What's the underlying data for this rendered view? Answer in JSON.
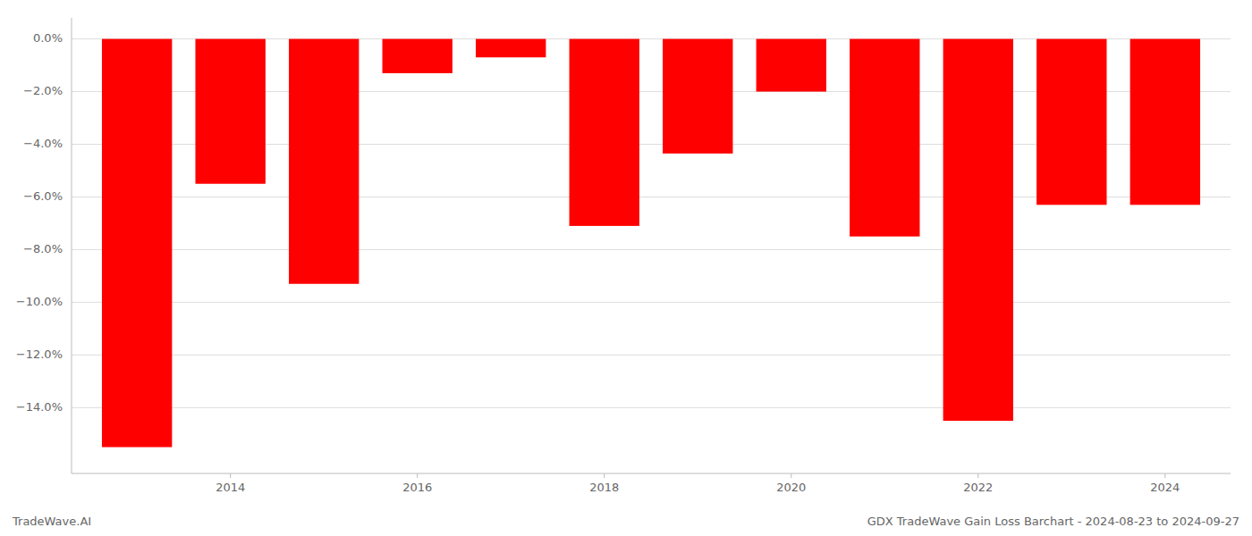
{
  "chart_data": {
    "type": "bar",
    "title": "GDX TradeWave Gain Loss Barchart - 2024-08-23 to 2024-09-27",
    "annotations": [
      "TradeWave.AI"
    ],
    "x": [
      2013,
      2014,
      2015,
      2016,
      2017,
      2018,
      2019,
      2020,
      2021,
      2022,
      2023,
      2024
    ],
    "values": [
      -15.5,
      -5.5,
      -9.3,
      -1.3,
      -0.7,
      -7.1,
      -4.35,
      -2.0,
      -7.5,
      -14.5,
      -6.3,
      -6.3
    ],
    "color": "#ff0000",
    "xlim": [
      2012.3,
      2024.7
    ],
    "xticks": [
      2014,
      2016,
      2018,
      2020,
      2022,
      2024
    ],
    "ylim": [
      -16.5,
      0.8
    ],
    "yticks": [
      {
        "value": 0,
        "label": "0.0%"
      },
      {
        "value": -2,
        "label": "−2.0%"
      },
      {
        "value": -4,
        "label": "−4.0%"
      },
      {
        "value": -6,
        "label": "−6.0%"
      },
      {
        "value": -8,
        "label": "−8.0%"
      },
      {
        "value": -10,
        "label": "−10.0%"
      },
      {
        "value": -12,
        "label": "−12.0%"
      },
      {
        "value": -14,
        "label": "−14.0%"
      }
    ],
    "grid": true
  }
}
